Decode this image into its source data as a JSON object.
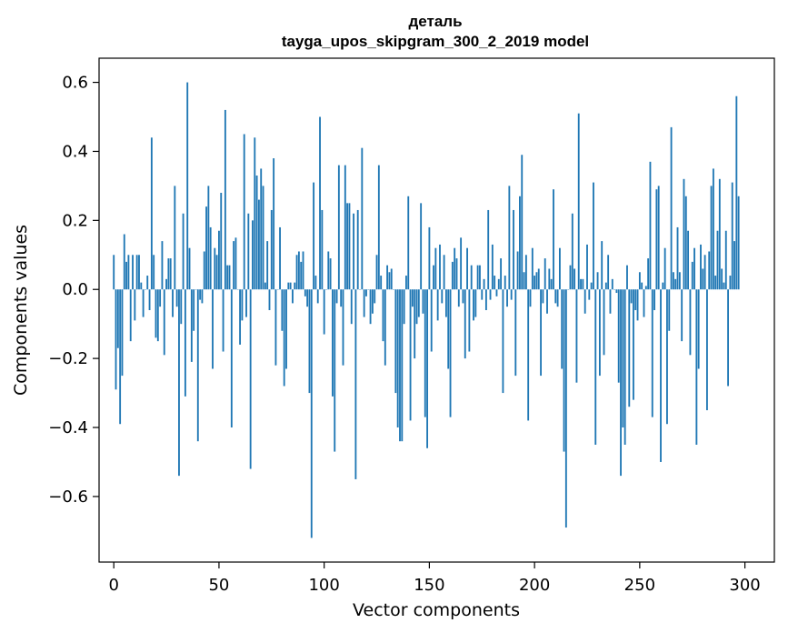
{
  "chart_data": {
    "type": "bar",
    "title": "деталь",
    "subtitle": "tayga_upos_skipgram_300_2_2019 model",
    "xlabel": "Vector components",
    "ylabel": "Components values",
    "xlim": [
      -7,
      314
    ],
    "ylim": [
      -0.79,
      0.67
    ],
    "x_ticks": [
      0,
      50,
      100,
      150,
      200,
      250,
      300
    ],
    "x_tick_labels": [
      "0",
      "50",
      "100",
      "150",
      "200",
      "250",
      "300"
    ],
    "y_ticks": [
      -0.6,
      -0.4,
      -0.2,
      0.0,
      0.2,
      0.4,
      0.6
    ],
    "y_tick_labels": [
      "−0.6",
      "−0.4",
      "−0.2",
      "0.0",
      "0.2",
      "0.4",
      "0.6"
    ],
    "grid": false,
    "bar_color": "#1f77b4",
    "series": [
      {
        "values": [
          0.1,
          -0.29,
          -0.17,
          -0.39,
          -0.25,
          0.16,
          0.08,
          0.1,
          -0.15,
          0.1,
          -0.09,
          0.1,
          0.1,
          0.02,
          -0.08,
          0.0,
          0.04,
          -0.06,
          0.44,
          0.1,
          -0.14,
          -0.15,
          -0.05,
          0.14,
          -0.19,
          0.03,
          0.09,
          0.09,
          -0.08,
          0.3,
          -0.05,
          -0.54,
          -0.1,
          0.22,
          -0.31,
          0.6,
          0.12,
          -0.21,
          -0.12,
          0.0,
          -0.44,
          -0.03,
          -0.04,
          0.11,
          0.24,
          0.3,
          0.18,
          -0.23,
          0.12,
          0.1,
          0.17,
          0.28,
          -0.18,
          0.52,
          0.07,
          0.07,
          -0.4,
          0.14,
          0.15,
          0.0,
          -0.16,
          -0.09,
          0.45,
          -0.08,
          0.22,
          -0.52,
          0.2,
          0.44,
          0.33,
          0.26,
          0.35,
          0.3,
          0.02,
          0.14,
          -0.06,
          0.23,
          0.38,
          -0.22,
          0.0,
          0.18,
          -0.12,
          -0.28,
          -0.23,
          0.02,
          0.02,
          -0.04,
          0.02,
          0.1,
          0.11,
          0.08,
          0.11,
          -0.02,
          -0.05,
          -0.3,
          -0.72,
          0.31,
          0.04,
          -0.04,
          0.5,
          0.23,
          -0.13,
          0.0,
          0.11,
          0.09,
          -0.31,
          -0.47,
          -0.04,
          0.36,
          -0.05,
          -0.22,
          0.36,
          0.25,
          0.25,
          -0.1,
          0.22,
          -0.55,
          0.23,
          0.0,
          0.41,
          -0.08,
          -0.02,
          0.0,
          -0.1,
          -0.07,
          -0.04,
          0.1,
          0.36,
          0.04,
          -0.15,
          -0.22,
          0.07,
          0.05,
          0.06,
          0.0,
          -0.3,
          -0.4,
          -0.44,
          -0.44,
          -0.1,
          0.04,
          0.27,
          -0.38,
          -0.05,
          -0.2,
          -0.1,
          -0.08,
          0.25,
          -0.07,
          -0.37,
          -0.46,
          0.18,
          -0.18,
          0.07,
          0.12,
          -0.09,
          0.13,
          -0.04,
          0.1,
          -0.08,
          -0.23,
          -0.37,
          0.08,
          0.12,
          0.09,
          -0.05,
          0.15,
          -0.04,
          -0.2,
          0.12,
          -0.18,
          0.07,
          -0.09,
          -0.08,
          0.07,
          0.07,
          -0.03,
          0.03,
          -0.06,
          0.23,
          -0.03,
          0.13,
          0.04,
          -0.02,
          0.03,
          0.09,
          -0.3,
          0.04,
          -0.05,
          0.3,
          -0.03,
          0.23,
          -0.25,
          0.11,
          0.27,
          0.39,
          0.05,
          0.1,
          -0.38,
          -0.05,
          0.12,
          0.04,
          0.05,
          0.06,
          -0.25,
          -0.04,
          0.09,
          -0.07,
          0.06,
          0.03,
          0.29,
          -0.04,
          -0.05,
          0.12,
          -0.23,
          -0.47,
          -0.69,
          0.0,
          0.07,
          0.22,
          0.06,
          -0.27,
          0.51,
          0.03,
          0.03,
          -0.07,
          0.13,
          -0.03,
          0.02,
          0.31,
          -0.45,
          0.05,
          -0.25,
          0.14,
          -0.19,
          0.02,
          0.1,
          -0.07,
          0.03,
          0.0,
          -0.01,
          -0.27,
          -0.54,
          -0.4,
          -0.45,
          0.07,
          -0.34,
          -0.04,
          -0.32,
          -0.06,
          -0.09,
          0.05,
          0.02,
          -0.08,
          0.01,
          0.09,
          0.37,
          -0.37,
          -0.06,
          0.29,
          0.3,
          -0.5,
          0.02,
          0.12,
          -0.39,
          -0.12,
          0.47,
          0.05,
          0.03,
          0.18,
          0.05,
          -0.15,
          0.32,
          0.27,
          0.17,
          -0.19,
          0.08,
          0.12,
          -0.45,
          -0.23,
          0.13,
          0.06,
          0.1,
          -0.35,
          0.11,
          0.3,
          0.35,
          0.04,
          0.17,
          0.32,
          0.06,
          0.02,
          0.17,
          -0.28,
          0.04,
          0.31,
          0.14,
          0.56,
          0.27
        ]
      }
    ]
  }
}
